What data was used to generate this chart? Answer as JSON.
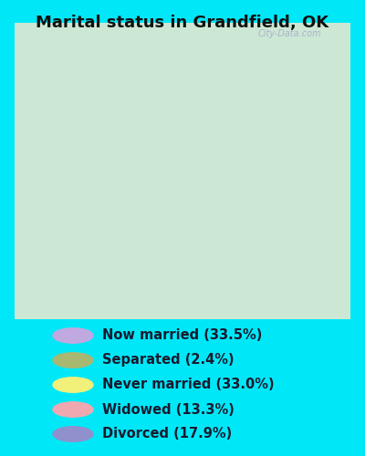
{
  "title": "Marital status in Grandfield, OK",
  "slices": [
    33.5,
    2.4,
    33.0,
    13.3,
    17.9
  ],
  "labels": [
    "Now married (33.5%)",
    "Separated (2.4%)",
    "Never married (33.0%)",
    "Widowed (13.3%)",
    "Divorced (17.9%)"
  ],
  "colors": [
    "#b8a0d8",
    "#9aaa6a",
    "#f0f080",
    "#f0a0a8",
    "#8888cc"
  ],
  "legend_colors": [
    "#c0a8e0",
    "#a8b870",
    "#f0f07a",
    "#f0a8b0",
    "#9090cc"
  ],
  "bg_outer": "#00e8f8",
  "bg_chart_color": "#c8e8d0",
  "title_fontsize": 13,
  "legend_fontsize": 10.5,
  "donut_width": 0.48,
  "start_angle": 90,
  "watermark": "City-Data.com"
}
